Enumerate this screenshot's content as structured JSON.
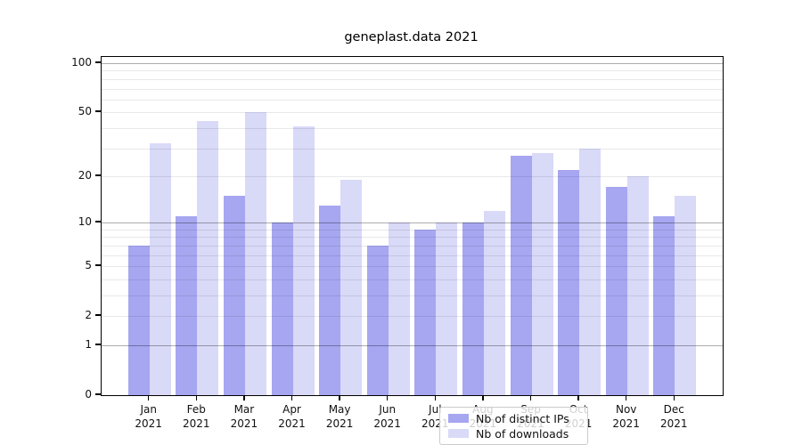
{
  "title": "geneplast.data 2021",
  "chart_data": {
    "type": "bar",
    "title": "geneplast.data 2021",
    "categories": [
      "Jan",
      "Feb",
      "Mar",
      "Apr",
      "May",
      "Jun",
      "Jul",
      "Aug",
      "Sep",
      "Oct",
      "Nov",
      "Dec"
    ],
    "x_year_label": "2021",
    "series": [
      {
        "name": "Nb of distinct IPs",
        "color": "#a6a6f1",
        "values": [
          7,
          11,
          15,
          10,
          13,
          7,
          9,
          10,
          27,
          22,
          17,
          11
        ]
      },
      {
        "name": "Nb of downloads",
        "color": "#d9d9f8",
        "values": [
          32,
          44,
          50,
          41,
          19,
          10,
          10,
          12,
          28,
          30,
          20,
          15
        ]
      }
    ],
    "xlabel": "",
    "ylabel": "",
    "y_scale": "log1p",
    "ylim": [
      0,
      109
    ],
    "y_tick_labels": [
      0,
      1,
      2,
      5,
      10,
      20,
      50,
      100
    ],
    "y_major_gridlines": [
      1,
      10,
      100
    ],
    "y_minor_gridlines": [
      2,
      3,
      4,
      5,
      6,
      7,
      8,
      9,
      20,
      30,
      40,
      50,
      60,
      70,
      80,
      90
    ],
    "grid_on_top": true,
    "legend_position": "lower center inside"
  },
  "legend": {
    "items": [
      {
        "label": "Nb of distinct IPs",
        "color": "#a6a6f1"
      },
      {
        "label": "Nb of downloads",
        "color": "#d9d9f8"
      }
    ]
  },
  "colors": {
    "axis": "#000000",
    "tick_text": "#111111",
    "major_grid": "#b0b0b0",
    "minor_grid": "#e8e8e8",
    "background": "#ffffff"
  }
}
